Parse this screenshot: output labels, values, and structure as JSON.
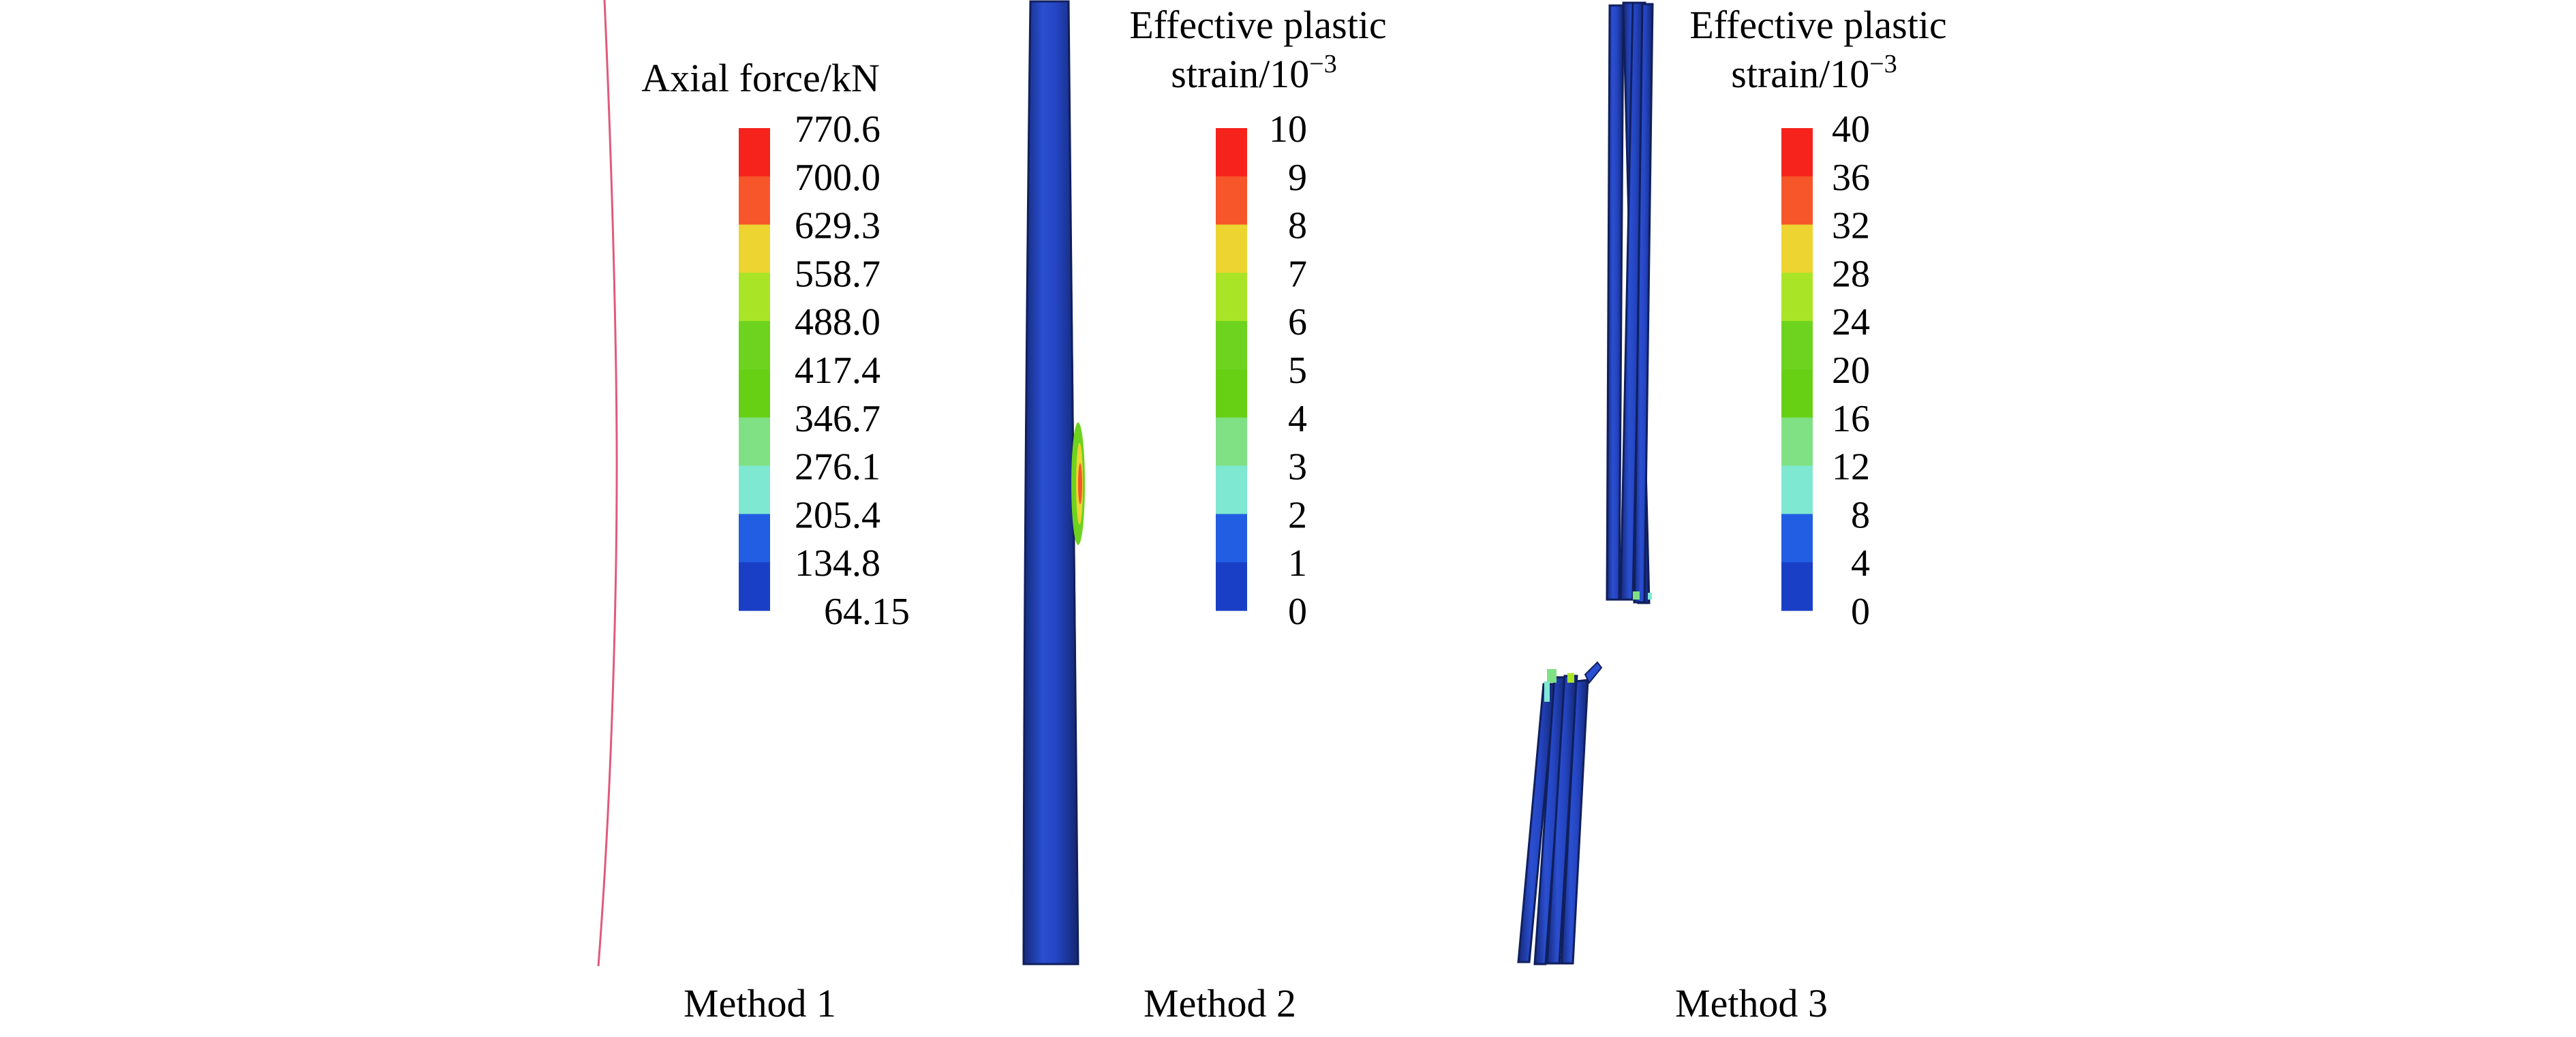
{
  "panels": [
    {
      "label": "Method 1",
      "legend": {
        "title_lines": [
          "Axial force/kN"
        ],
        "title_exponent": "",
        "tick_labels": [
          "770.6",
          "700.0",
          "629.3",
          "558.7",
          "488.0",
          "417.4",
          "346.7",
          "276.1",
          "205.4",
          "134.8",
          "64.15"
        ]
      }
    },
    {
      "label": "Method 2",
      "legend": {
        "title_lines": [
          "Effective plastic",
          "strain/10"
        ],
        "title_exponent": "−3",
        "tick_labels": [
          "10",
          "9",
          "8",
          "7",
          "6",
          "5",
          "4",
          "3",
          "2",
          "1",
          "0"
        ]
      }
    },
    {
      "label": "Method 3",
      "legend": {
        "title_lines": [
          "Effective plastic",
          "strain/10"
        ],
        "title_exponent": "−3",
        "tick_labels": [
          "40",
          "36",
          "32",
          "28",
          "24",
          "20",
          "16",
          "12",
          "8",
          "4",
          "0"
        ]
      }
    }
  ],
  "colors": {
    "legend_bands_top_to_bottom": [
      "#f5231c",
      "#f6562a",
      "#edd431",
      "#a9e526",
      "#6dd31e",
      "#67d015",
      "#7fe184",
      "#7fe8d2",
      "#215ee3",
      "#1a3fc7"
    ],
    "member_body": "#1f3fb0",
    "member_highlight": "#2f58d8",
    "member_shadow": "#152a7a",
    "method1_line": "#e05a7a"
  }
}
